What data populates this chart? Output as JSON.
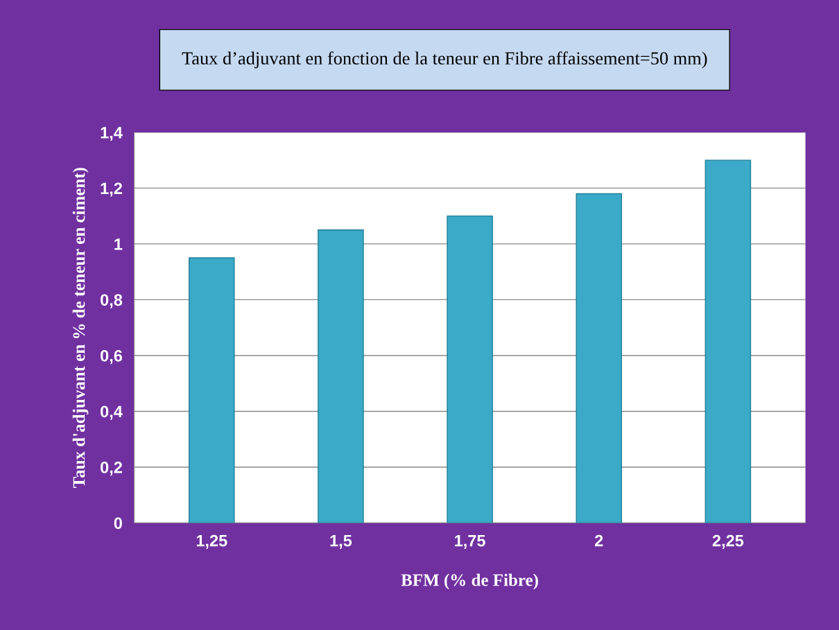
{
  "chart_data": {
    "type": "bar",
    "title": "Taux d’adjuvant en fonction de la teneur en Fibre affaissement=50 mm)",
    "xlabel": "BFM (% de Fibre)",
    "ylabel": "Taux d'adjuvant en % de teneur en ciment)",
    "categories": [
      "1,25",
      "1,5",
      "1,75",
      "2",
      "2,25"
    ],
    "values": [
      0.95,
      1.05,
      1.1,
      1.18,
      1.3
    ],
    "color": "#3aaac8",
    "ylim": [
      0,
      1.4
    ],
    "yticks": [
      {
        "value": 0,
        "label": "0"
      },
      {
        "value": 0.2,
        "label": "0,2"
      },
      {
        "value": 0.4,
        "label": "0,4"
      },
      {
        "value": 0.6,
        "label": "0,6"
      },
      {
        "value": 0.8,
        "label": "0,8"
      },
      {
        "value": 1,
        "label": "1"
      },
      {
        "value": 1.2,
        "label": "1,2"
      },
      {
        "value": 1.4,
        "label": "1,4"
      }
    ],
    "grid": "y"
  }
}
